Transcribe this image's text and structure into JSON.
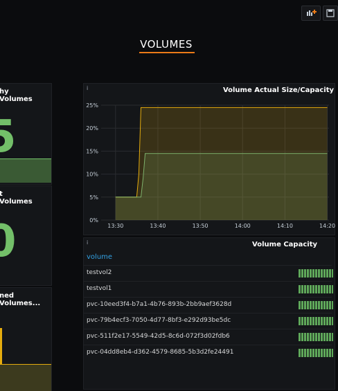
{
  "dashboard": {
    "title": "VOLUMES"
  },
  "toolbar": {
    "buttons": [
      "add-panel-icon",
      "save-icon"
    ]
  },
  "stat_panels": [
    {
      "title": "hy Volumes",
      "value": "5"
    },
    {
      "title": "t Volumes",
      "value": "0"
    },
    {
      "title": "ned Volumes...",
      "value": ""
    }
  ],
  "chart_panel": {
    "title": "Volume Actual Size/Capacity",
    "info": "i"
  },
  "chart_data": {
    "type": "line",
    "title": "Volume Actual Size/Capacity",
    "xlabel": "",
    "ylabel": "",
    "x_ticks": [
      "13:30",
      "13:40",
      "13:50",
      "14:00",
      "14:10",
      "14:20"
    ],
    "y_ticks": [
      "0%",
      "5%",
      "10%",
      "15%",
      "20%",
      "25%"
    ],
    "ylim": [
      0,
      25
    ],
    "grid": true,
    "series": [
      {
        "color": "#e5ac0e",
        "points": [
          [
            "13:30",
            5
          ],
          [
            "13:35",
            5
          ],
          [
            "13:35.5",
            10
          ],
          [
            "13:36",
            24.5
          ],
          [
            "14:20",
            24.5
          ]
        ]
      },
      {
        "color": "#7eb26d",
        "points": [
          [
            "13:30",
            5
          ],
          [
            "13:36",
            5
          ],
          [
            "13:36.5",
            9
          ],
          [
            "13:37",
            14.5
          ],
          [
            "14:20",
            14.5
          ]
        ]
      }
    ]
  },
  "capacity_panel": {
    "title": "Volume Capacity",
    "info": "i",
    "column_header": "volume",
    "rows": [
      {
        "volume": "testvol2"
      },
      {
        "volume": "testvol1"
      },
      {
        "volume": "pvc-10eed3f4-b7a1-4b76-893b-2bb9aef3628d"
      },
      {
        "volume": "pvc-79b4ecf3-7050-4d77-8bf3-e292d93be5dc"
      },
      {
        "volume": "pvc-511f2e17-5549-42d5-8c6d-072f3d02fdb6"
      },
      {
        "volume": "pvc-04dd8eb4-d362-4579-8685-5b3d2fe24491"
      }
    ]
  }
}
